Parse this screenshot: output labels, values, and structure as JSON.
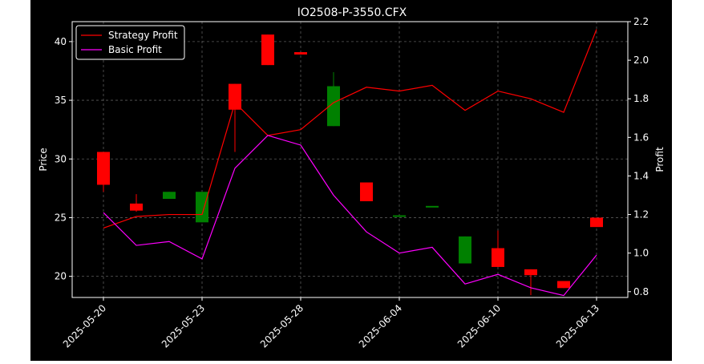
{
  "chart_data": {
    "type": "candlestick",
    "title": "IO2508-P-3550.CFX",
    "ylabel_left": "Price",
    "ylabel_right": "Profit",
    "ylim_left": [
      18.2,
      41.7
    ],
    "ylim_right": [
      0.77,
      2.2
    ],
    "yticks_left": [
      20,
      25,
      30,
      35,
      40
    ],
    "yticks_right": [
      0.8,
      1.0,
      1.2,
      1.4,
      1.6,
      1.8,
      2.0,
      2.2
    ],
    "ytick_labels_right": [
      "0.8",
      "1.0",
      "1.2",
      "1.4",
      "1.6",
      "1.8",
      "2.0",
      "2.2"
    ],
    "xtick_labels": [
      "2025-05-20",
      "2025-05-23",
      "2025-05-28",
      "2025-06-04",
      "2025-06-10",
      "2025-06-13"
    ],
    "xtick_positions": [
      0,
      3,
      6,
      9,
      12,
      15
    ],
    "grid": true,
    "legend_position": "top-left",
    "colors": {
      "background": "#000000",
      "up": "#008000",
      "down": "#ff0000",
      "strategy": "#ff0000",
      "basic": "#ff00ff",
      "axis": "#ffffff",
      "grid": "#808080"
    },
    "candles": [
      {
        "o": 30.6,
        "h": 30.6,
        "l": 27.2,
        "c": 27.8
      },
      {
        "o": 26.2,
        "h": 27.0,
        "l": 25.5,
        "c": 25.6
      },
      {
        "o": 26.6,
        "h": 27.2,
        "l": 26.6,
        "c": 27.2
      },
      {
        "o": 24.6,
        "h": 27.2,
        "l": 24.6,
        "c": 27.2
      },
      {
        "o": 36.4,
        "h": 36.4,
        "l": 30.6,
        "c": 34.2
      },
      {
        "o": 40.6,
        "h": 40.6,
        "l": 38.0,
        "c": 38.0
      },
      {
        "o": 39.1,
        "h": 39.1,
        "l": 38.9,
        "c": 38.9
      },
      {
        "o": 32.8,
        "h": 37.4,
        "l": 32.8,
        "c": 36.2
      },
      {
        "o": 28.0,
        "h": 28.0,
        "l": 26.4,
        "c": 26.4
      },
      {
        "o": 25.2,
        "h": 25.2,
        "l": 25.2,
        "c": 25.2
      },
      {
        "o": 26.0,
        "h": 26.0,
        "l": 26.0,
        "c": 26.0
      },
      {
        "o": 21.1,
        "h": 23.4,
        "l": 21.1,
        "c": 23.4
      },
      {
        "o": 22.4,
        "h": 23.9,
        "l": 20.8,
        "c": 20.8
      },
      {
        "o": 20.6,
        "h": 20.6,
        "l": 18.4,
        "c": 20.1
      },
      {
        "o": 19.6,
        "h": 19.6,
        "l": 19.0,
        "c": 19.0
      },
      {
        "o": 25.0,
        "h": 25.0,
        "l": 24.2,
        "c": 24.2
      }
    ],
    "series": [
      {
        "name": "Strategy Profit",
        "axis": "right",
        "values": [
          1.13,
          1.19,
          1.2,
          1.2,
          1.78,
          1.61,
          1.64,
          1.78,
          1.86,
          1.84,
          1.87,
          1.74,
          1.84,
          1.8,
          1.73,
          2.16
        ]
      },
      {
        "name": "Basic Profit",
        "axis": "right",
        "values": [
          1.21,
          1.04,
          1.06,
          0.97,
          1.44,
          1.61,
          1.56,
          1.3,
          1.11,
          1.0,
          1.03,
          0.84,
          0.89,
          0.82,
          0.78,
          0.99
        ]
      }
    ]
  }
}
